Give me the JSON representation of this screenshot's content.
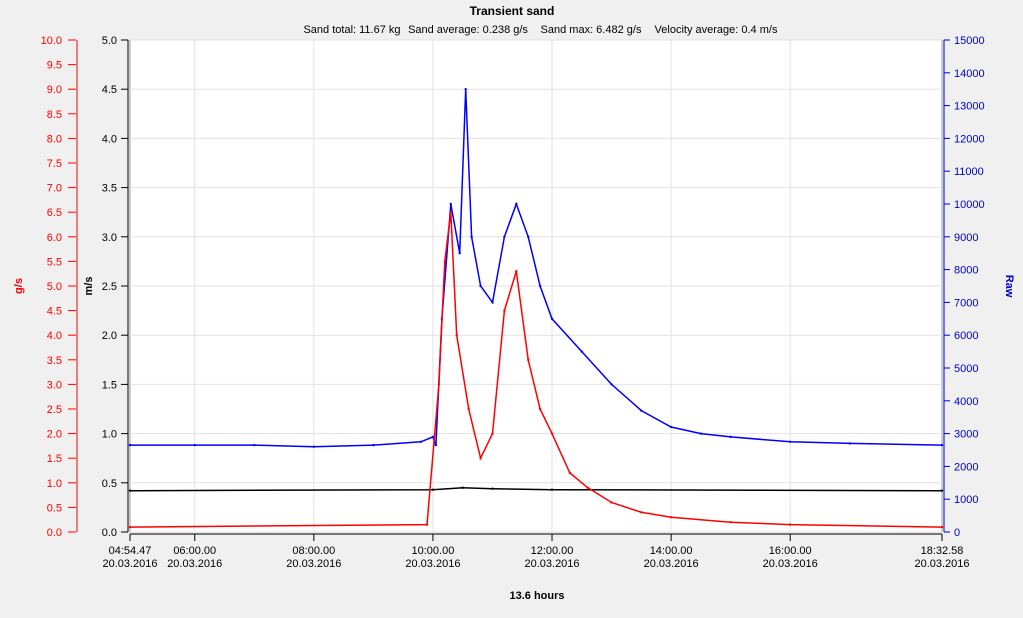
{
  "chart_data": {
    "type": "line",
    "title": "Transient sand",
    "subtitle": {
      "sand_total": "Sand total: 11.67 kg",
      "sand_average": "Sand average: 0.238 g/s",
      "sand_max": "Sand max: 6.482 g/s",
      "velocity_average": "Velocity average: 0.4 m/s"
    },
    "xlabel": "13.6 hours",
    "x_ticks": [
      {
        "hours": 4.913,
        "time": "04:54.47",
        "date": "20.03.2016"
      },
      {
        "hours": 6.0,
        "time": "06:00.00",
        "date": "20.03.2016"
      },
      {
        "hours": 8.0,
        "time": "08:00.00",
        "date": "20.03.2016"
      },
      {
        "hours": 10.0,
        "time": "10:00.00",
        "date": "20.03.2016"
      },
      {
        "hours": 12.0,
        "time": "12:00.00",
        "date": "20.03.2016"
      },
      {
        "hours": 14.0,
        "time": "14:00.00",
        "date": "20.03.2016"
      },
      {
        "hours": 16.0,
        "time": "16:00.00",
        "date": "20.03.2016"
      },
      {
        "hours": 18.549,
        "time": "18:32.58",
        "date": "20.03.2016"
      }
    ],
    "xlim": [
      4.913,
      18.549
    ],
    "y_axes": {
      "gs": {
        "label": "g/s",
        "ylim": [
          0,
          10
        ],
        "ticks": [
          "0.0",
          "0.5",
          "1.0",
          "1.5",
          "2.0",
          "2.5",
          "3.0",
          "3.5",
          "4.0",
          "4.5",
          "5.0",
          "5.5",
          "6.0",
          "6.5",
          "7.0",
          "7.5",
          "8.0",
          "8.5",
          "9.0",
          "9.5",
          "10.0"
        ],
        "color": "#ff0000"
      },
      "ms": {
        "label": "m/s",
        "ylim": [
          0,
          5
        ],
        "ticks": [
          "0.0",
          "0.5",
          "1.0",
          "1.5",
          "2.0",
          "2.5",
          "3.0",
          "3.5",
          "4.0",
          "4.5",
          "5.0"
        ],
        "color": "#000000"
      },
      "raw": {
        "label": "Raw",
        "ylim": [
          0,
          15000
        ],
        "ticks": [
          "0",
          "1000",
          "2000",
          "3000",
          "4000",
          "5000",
          "6000",
          "7000",
          "8000",
          "9000",
          "10000",
          "11000",
          "12000",
          "13000",
          "14000",
          "15000"
        ],
        "color": "#0000cc"
      }
    },
    "grid": true,
    "series": [
      {
        "axis": "raw",
        "color": "#0000ff",
        "points": [
          [
            4.913,
            2650
          ],
          [
            6.0,
            2650
          ],
          [
            7.0,
            2650
          ],
          [
            8.0,
            2600
          ],
          [
            9.0,
            2650
          ],
          [
            9.8,
            2750
          ],
          [
            10.0,
            2900
          ],
          [
            10.05,
            2650
          ],
          [
            10.15,
            6500
          ],
          [
            10.3,
            10000
          ],
          [
            10.45,
            8500
          ],
          [
            10.55,
            13500
          ],
          [
            10.65,
            9000
          ],
          [
            10.8,
            7500
          ],
          [
            11.0,
            7000
          ],
          [
            11.2,
            9000
          ],
          [
            11.4,
            10000
          ],
          [
            11.6,
            9000
          ],
          [
            11.8,
            7500
          ],
          [
            12.0,
            6500
          ],
          [
            12.5,
            5500
          ],
          [
            13.0,
            4500
          ],
          [
            13.5,
            3700
          ],
          [
            14.0,
            3200
          ],
          [
            14.5,
            3000
          ],
          [
            15.0,
            2900
          ],
          [
            16.0,
            2750
          ],
          [
            17.0,
            2700
          ],
          [
            18.549,
            2650
          ]
        ]
      },
      {
        "axis": "ms",
        "color": "#000000",
        "points": [
          [
            4.913,
            0.42
          ],
          [
            10.0,
            0.43
          ],
          [
            10.5,
            0.45
          ],
          [
            11.0,
            0.44
          ],
          [
            12.0,
            0.43
          ],
          [
            18.549,
            0.42
          ]
        ]
      },
      {
        "axis": "gs",
        "color": "#ff0000",
        "points": [
          [
            4.913,
            0.1
          ],
          [
            9.9,
            0.15
          ],
          [
            10.1,
            3.0
          ],
          [
            10.2,
            5.5
          ],
          [
            10.3,
            6.5
          ],
          [
            10.4,
            4.0
          ],
          [
            10.6,
            2.5
          ],
          [
            10.8,
            1.5
          ],
          [
            11.0,
            2.0
          ],
          [
            11.2,
            4.5
          ],
          [
            11.4,
            5.3
          ],
          [
            11.6,
            3.5
          ],
          [
            11.8,
            2.5
          ],
          [
            12.0,
            2.0
          ],
          [
            12.3,
            1.2
          ],
          [
            12.6,
            0.9
          ],
          [
            13.0,
            0.6
          ],
          [
            13.5,
            0.4
          ],
          [
            14.0,
            0.3
          ],
          [
            15.0,
            0.2
          ],
          [
            16.0,
            0.15
          ],
          [
            18.549,
            0.1
          ]
        ]
      }
    ]
  }
}
